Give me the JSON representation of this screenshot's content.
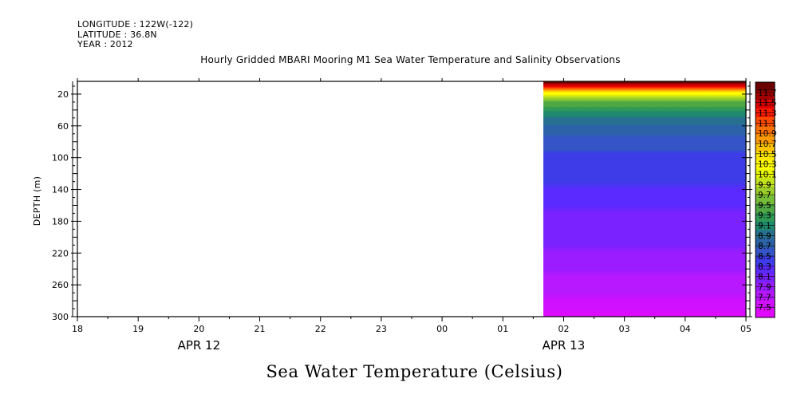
{
  "header": {
    "longitude": "LONGITUDE : 122W(-122)",
    "latitude": "LATITUDE : 36.8N",
    "year": "YEAR : 2012"
  },
  "title": "Hourly Gridded MBARI Mooring M1 Sea Water Temperature and Salinity Observations",
  "chart_data": {
    "type": "heatmap",
    "title": "Hourly Gridded MBARI Mooring M1 Sea Water Temperature and Salinity Observations",
    "xlabel": "Sea Water Temperature (Celsius)",
    "ylabel": "DEPTH (m)",
    "x_tick_labels": [
      "18",
      "19",
      "20",
      "21",
      "22",
      "23",
      "00",
      "01",
      "02",
      "03",
      "04",
      "05"
    ],
    "x_date_labels": [
      {
        "label": "APR 12",
        "hour": "20"
      },
      {
        "label": "APR 13",
        "hour": "02"
      }
    ],
    "x_range_hours": [
      "APR 12 18:00",
      "APR 13 05:00"
    ],
    "data_start_hour": "APR 13 01:40",
    "y_ticks": [
      20,
      60,
      100,
      140,
      180,
      220,
      260,
      300
    ],
    "ylim": [
      300,
      4
    ],
    "y_reversed": true,
    "colorbar": {
      "labels": [
        "11.7",
        "11.5",
        "11.3",
        "11.1",
        "10.9",
        "10.7",
        "10.5",
        "10.3",
        "10.1",
        "9.9",
        "9.7",
        "9.5",
        "9.3",
        "9.1",
        "8.9",
        "8.7",
        "8.5",
        "8.3",
        "8.1",
        "7.9",
        "7.7",
        "7.5"
      ],
      "colors": [
        "#6a0000",
        "#a00000",
        "#d80000",
        "#ff1a00",
        "#ff4800",
        "#ff7000",
        "#ff9a00",
        "#ffc400",
        "#ffe800",
        "#ffff00",
        "#e6f500",
        "#c3e41a",
        "#9ccf2a",
        "#76bd38",
        "#4fa844",
        "#2f9a56",
        "#1f8a6e",
        "#287090",
        "#2c62a8",
        "#3454c8",
        "#3d3ce8",
        "#5a2aff",
        "#7a22ff",
        "#9a1cff",
        "#b818ff",
        "#d010ff",
        "#e008ff"
      ]
    },
    "profile": [
      {
        "depth": 4,
        "value": 11.9
      },
      {
        "depth": 10,
        "value": 11.4
      },
      {
        "depth": 15,
        "value": 10.8
      },
      {
        "depth": 20,
        "value": 10.2
      },
      {
        "depth": 25,
        "value": 9.8
      },
      {
        "depth": 30,
        "value": 9.5
      },
      {
        "depth": 40,
        "value": 9.2
      },
      {
        "depth": 50,
        "value": 8.95
      },
      {
        "depth": 60,
        "value": 8.8
      },
      {
        "depth": 80,
        "value": 8.6
      },
      {
        "depth": 100,
        "value": 8.45
      },
      {
        "depth": 140,
        "value": 8.3
      },
      {
        "depth": 180,
        "value": 8.1
      },
      {
        "depth": 220,
        "value": 7.95
      },
      {
        "depth": 260,
        "value": 7.75
      },
      {
        "depth": 300,
        "value": 7.45
      }
    ]
  }
}
